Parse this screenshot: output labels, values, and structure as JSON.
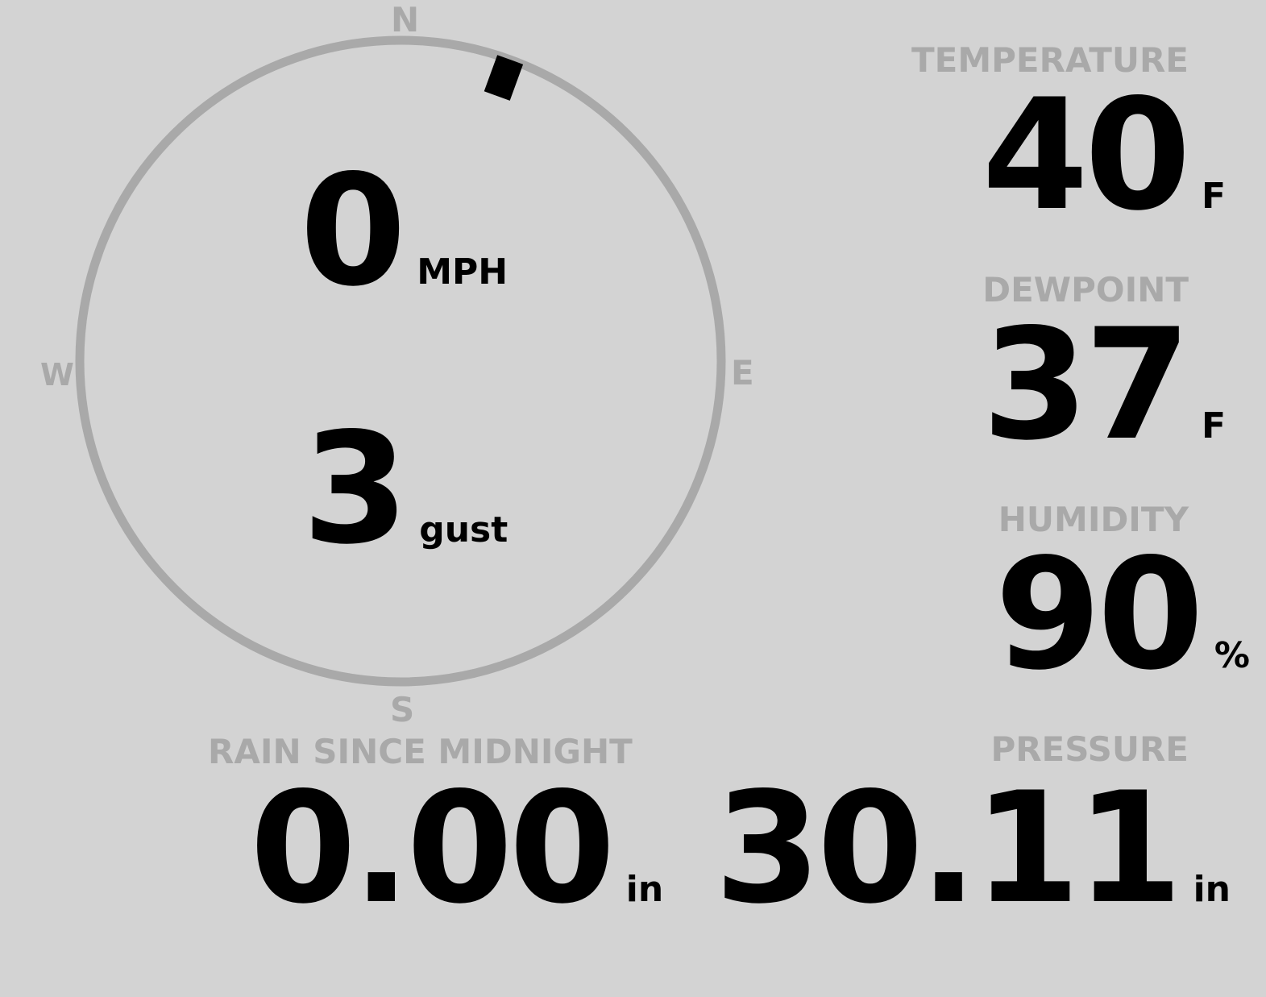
{
  "compass": {
    "north": "N",
    "south": "S",
    "east": "E",
    "west": "W",
    "wind_direction_deg": 20,
    "ring_color": "#a9a9a9",
    "marker_color": "#000000"
  },
  "wind": {
    "speed": "0",
    "speed_unit": "MPH",
    "gust": "3",
    "gust_unit": "gust"
  },
  "temperature": {
    "label": "TEMPERATURE",
    "value": "40",
    "unit": "F"
  },
  "dewpoint": {
    "label": "DEWPOINT",
    "value": "37",
    "unit": "F"
  },
  "humidity": {
    "label": "HUMIDITY",
    "value": "90",
    "unit": "%"
  },
  "rain": {
    "label": "RAIN SINCE MIDNIGHT",
    "value": "0.00",
    "unit": "in"
  },
  "pressure": {
    "label": "PRESSURE",
    "value": "30.11",
    "unit": "in"
  },
  "colors": {
    "background": "#d3d3d3",
    "label": "#a9a9a9",
    "value": "#000000"
  }
}
